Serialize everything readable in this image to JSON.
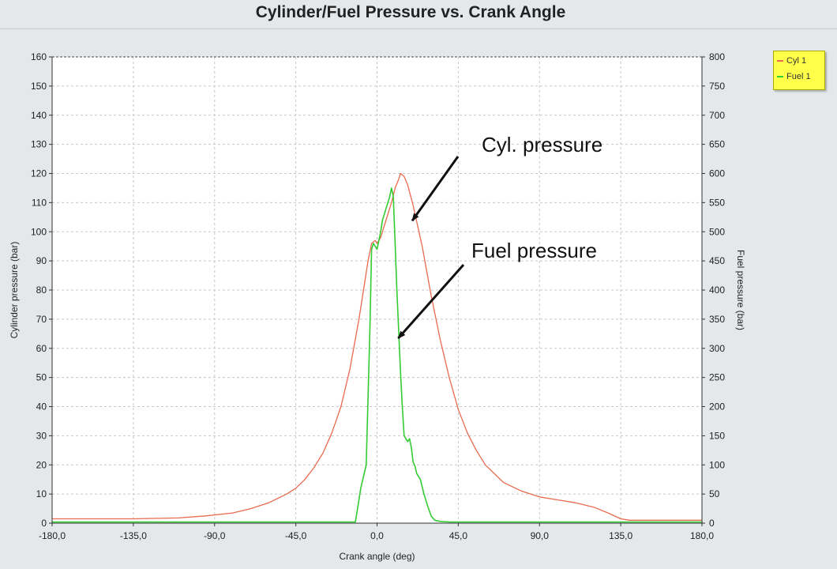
{
  "colors": {
    "cyl": "#e86a4f",
    "fuel": "#33cc33",
    "grid": "#c8c8c8",
    "plot_bg": "#ffffff"
  },
  "chart_data": {
    "type": "line",
    "title": "Cylinder/Fuel Pressure vs. Crank Angle",
    "xlabel": "Crank angle (deg)",
    "ylabel": "Cylinder pressure (bar)",
    "y2label": "Fuel pressure (bar)",
    "xlim": [
      -180,
      180
    ],
    "ylim": [
      0,
      160
    ],
    "y2lim": [
      0,
      800
    ],
    "grid": true,
    "legend_position": "top-right",
    "x_ticks": [
      "-180,0",
      "-135,0",
      "-90,0",
      "-45,0",
      "0,0",
      "45,0",
      "90,0",
      "135,0",
      "180,0"
    ],
    "y_ticks": [
      "0",
      "10",
      "20",
      "30",
      "40",
      "50",
      "60",
      "70",
      "80",
      "90",
      "100",
      "110",
      "120",
      "130",
      "140",
      "150",
      "160"
    ],
    "y2_ticks": [
      "0",
      "50",
      "100",
      "150",
      "200",
      "250",
      "300",
      "350",
      "400",
      "450",
      "500",
      "550",
      "600",
      "650",
      "700",
      "750",
      "800"
    ],
    "series": [
      {
        "name": "Cyl 1",
        "axis": "left",
        "x": [
          -180,
          -135,
          -110,
          -95,
          -80,
          -70,
          -60,
          -50,
          -45,
          -40,
          -35,
          -30,
          -25,
          -20,
          -15,
          -10,
          -7,
          -5,
          -3,
          -1,
          0,
          2,
          5,
          8,
          10,
          12,
          13,
          15,
          17,
          20,
          25,
          30,
          35,
          40,
          45,
          50,
          55,
          60,
          70,
          80,
          90,
          100,
          110,
          120,
          128,
          135,
          140,
          150,
          165,
          180
        ],
        "y": [
          1.5,
          1.5,
          1.8,
          2.5,
          3.5,
          5,
          7,
          10,
          12,
          15,
          19,
          24,
          31,
          40,
          53,
          70,
          82,
          90,
          96,
          97,
          96,
          98,
          104,
          110,
          115,
          118,
          120,
          119,
          116,
          109,
          95,
          78,
          63,
          50,
          39,
          31,
          25,
          20,
          14,
          11,
          9,
          8,
          7,
          5.5,
          3.5,
          1.5,
          1,
          1,
          1,
          1
        ]
      },
      {
        "name": "Fuel 1",
        "axis": "right",
        "x": [
          -180,
          -100,
          -60,
          -12,
          -9,
          -6,
          -4,
          -3,
          -2,
          0,
          2,
          3,
          5,
          7,
          8,
          9,
          10,
          11,
          12,
          13,
          14,
          15,
          17,
          18,
          19,
          20,
          21,
          22,
          24,
          26,
          28,
          30,
          32,
          35,
          40,
          60,
          100,
          180
        ],
        "y": [
          2,
          2,
          2,
          2,
          60,
          100,
          330,
          470,
          480,
          470,
          500,
          520,
          540,
          560,
          575,
          560,
          480,
          400,
          330,
          260,
          200,
          150,
          140,
          145,
          130,
          105,
          98,
          85,
          75,
          50,
          30,
          12,
          5,
          3,
          2,
          2,
          2,
          2
        ]
      }
    ],
    "annotations": [
      {
        "text": "Cyl. pressure",
        "x": 16,
        "y": 100
      },
      {
        "text": "Fuel pressure",
        "x": 10,
        "y": 64
      }
    ]
  }
}
